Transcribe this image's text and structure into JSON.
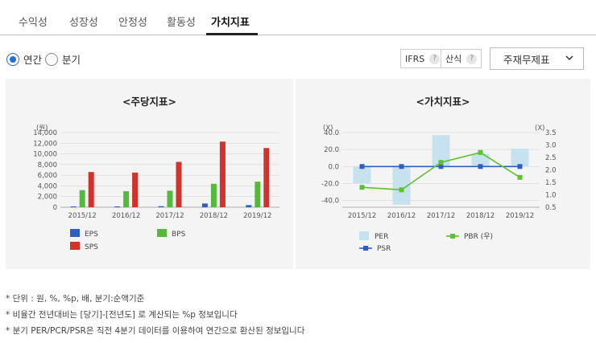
{
  "tabs": [
    "수익성",
    "성장성",
    "안정성",
    "활동성",
    "가치지표"
  ],
  "active_tab": 4,
  "period": {
    "options": [
      "연간",
      "분기"
    ],
    "selected": 0
  },
  "chips": {
    "ifrs": "IFRS",
    "formula": "산식",
    "help": "?"
  },
  "select": {
    "value": "주재무제표"
  },
  "notes": [
    "* 단위 : 원, %, %p, 배, 분기:순액기준",
    "* 비율간 전년대비는 [당기]-[전년도] 로 계산되는 %p 정보입니다",
    "* 분기 PER/PCR/PSR은 직전 4분기 데이터를 이용하여 연간으로 환산된 정보입니다"
  ],
  "chart_data": [
    {
      "type": "bar",
      "title": "<주당지표>",
      "ylabel": "(원)",
      "categories": [
        "2015/12",
        "2016/12",
        "2017/12",
        "2018/12",
        "2019/12"
      ],
      "ylim": [
        0,
        14000
      ],
      "yticks": [
        0,
        2000,
        4000,
        6000,
        8000,
        10000,
        12000,
        14000
      ],
      "ytick_labels": [
        "0",
        "2,000",
        "4,000",
        "6,000",
        "8,000",
        "10,000",
        "12,000",
        "14,000"
      ],
      "series": [
        {
          "name": "EPS",
          "color": "#2e5fbf",
          "values": [
            150,
            150,
            200,
            700,
            400
          ]
        },
        {
          "name": "BPS",
          "color": "#56b93d",
          "values": [
            3200,
            3000,
            3100,
            4400,
            4800
          ]
        },
        {
          "name": "SPS",
          "color": "#d1322b",
          "values": [
            6600,
            6500,
            8500,
            12300,
            11100
          ]
        }
      ],
      "legend_position": "bottom"
    },
    {
      "type": "bar",
      "title": "<가치지표>",
      "ylabel_left": "(X)",
      "ylabel_right": "(X)",
      "categories": [
        "2015/12",
        "2016/12",
        "2017/12",
        "2018/12",
        "2019/12"
      ],
      "ylim_left": [
        -48,
        40
      ],
      "yticks_left": [
        -40,
        -20,
        0,
        20,
        40
      ],
      "ytick_labels_left": [
        "-40.0",
        "-20.0",
        "0.0",
        "20.0",
        "40.0"
      ],
      "ylim_right": [
        0.5,
        3.5
      ],
      "yticks_right": [
        0.5,
        1.0,
        1.5,
        2.0,
        2.5,
        3.0,
        3.5
      ],
      "ytick_labels_right": [
        "0.5",
        "1.0",
        "1.5",
        "2.0",
        "2.5",
        "3.0",
        "3.5"
      ],
      "series": [
        {
          "name": "PER",
          "kind": "bar",
          "axis": "left",
          "color": "#c6e2ef",
          "values": [
            -20,
            -45,
            37,
            15,
            21
          ]
        },
        {
          "name": "PBR (우)",
          "kind": "line",
          "axis": "right",
          "color": "#5cc02f",
          "values": [
            1.3,
            1.2,
            2.3,
            2.7,
            1.7
          ]
        },
        {
          "name": "PSR",
          "kind": "line",
          "axis": "left",
          "color": "#2e5fbf",
          "values": [
            0,
            0,
            0,
            0,
            0
          ]
        }
      ],
      "legend_position": "bottom"
    }
  ]
}
